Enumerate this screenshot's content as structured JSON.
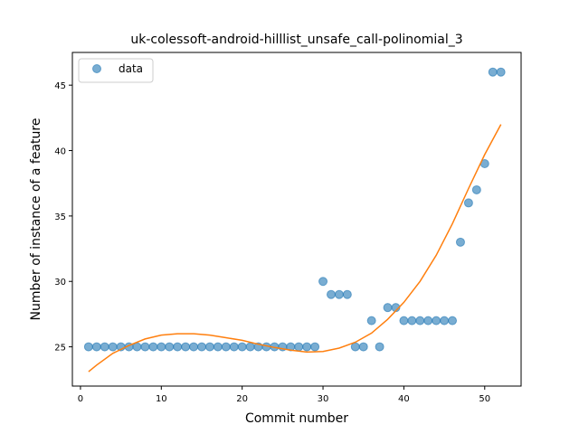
{
  "chart_data": {
    "type": "scatter",
    "title": "uk-colessoft-android-hilllist_unsafe_call-polinomial_3",
    "xlabel": "Commit number",
    "ylabel": "Number of instance of a feature",
    "xlim": [
      -1,
      54.5
    ],
    "ylim": [
      22,
      47.5
    ],
    "xticks": [
      0,
      10,
      20,
      30,
      40,
      50
    ],
    "yticks": [
      25,
      30,
      35,
      40,
      45
    ],
    "grid": false,
    "legend": {
      "placement": "top-left",
      "entries": [
        "data"
      ]
    },
    "colors": {
      "data": "#1f77b4",
      "fit": "#ff7f0e"
    },
    "series": [
      {
        "name": "data",
        "kind": "scatter",
        "x": [
          1,
          2,
          3,
          4,
          5,
          6,
          7,
          8,
          9,
          10,
          11,
          12,
          13,
          14,
          15,
          16,
          17,
          18,
          19,
          20,
          21,
          22,
          23,
          24,
          25,
          26,
          27,
          28,
          29,
          30,
          31,
          32,
          33,
          34,
          35,
          36,
          37,
          38,
          39,
          40,
          41,
          42,
          43,
          44,
          45,
          46,
          47,
          48,
          49,
          50,
          51,
          52
        ],
        "y": [
          25,
          25,
          25,
          25,
          25,
          25,
          25,
          25,
          25,
          25,
          25,
          25,
          25,
          25,
          25,
          25,
          25,
          25,
          25,
          25,
          25,
          25,
          25,
          25,
          25,
          25,
          25,
          25,
          25,
          30,
          29,
          29,
          29,
          25,
          25,
          27,
          25,
          28,
          28,
          27,
          27,
          27,
          27,
          27,
          27,
          27,
          33,
          36,
          37,
          39,
          46,
          46
        ]
      },
      {
        "kind": "line",
        "x": [
          1,
          2,
          4,
          6,
          8,
          10,
          12,
          14,
          16,
          18,
          20,
          22,
          24,
          26,
          28,
          30,
          32,
          34,
          36,
          38,
          40,
          42,
          44,
          46,
          48,
          50,
          52
        ],
        "y": [
          23.1,
          23.6,
          24.5,
          25.1,
          25.6,
          25.9,
          26.0,
          26.0,
          25.9,
          25.7,
          25.5,
          25.2,
          24.95,
          24.75,
          24.6,
          24.65,
          24.9,
          25.35,
          26.05,
          27.1,
          28.4,
          30.0,
          32.0,
          34.4,
          37.1,
          39.7,
          42.0
        ]
      }
    ]
  }
}
